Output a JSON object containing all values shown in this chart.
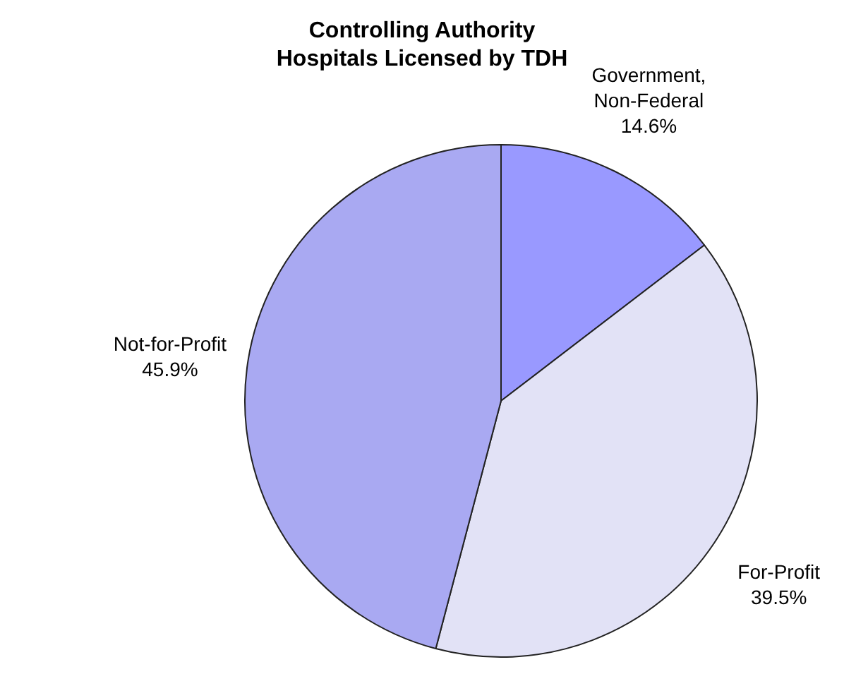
{
  "chart_data": {
    "type": "pie",
    "title": "Controlling Authority\nHospitals Licensed by TDH",
    "categories": [
      "Government, Non-Federal",
      "For-Profit",
      "Not-for-Profit"
    ],
    "values": [
      14.6,
      39.5,
      45.9
    ],
    "value_labels": [
      "14.6%",
      "39.5%",
      "45.9%"
    ],
    "colors": [
      "#9999ff",
      "#e2e2f6",
      "#a9a9f2"
    ],
    "legend": false
  }
}
